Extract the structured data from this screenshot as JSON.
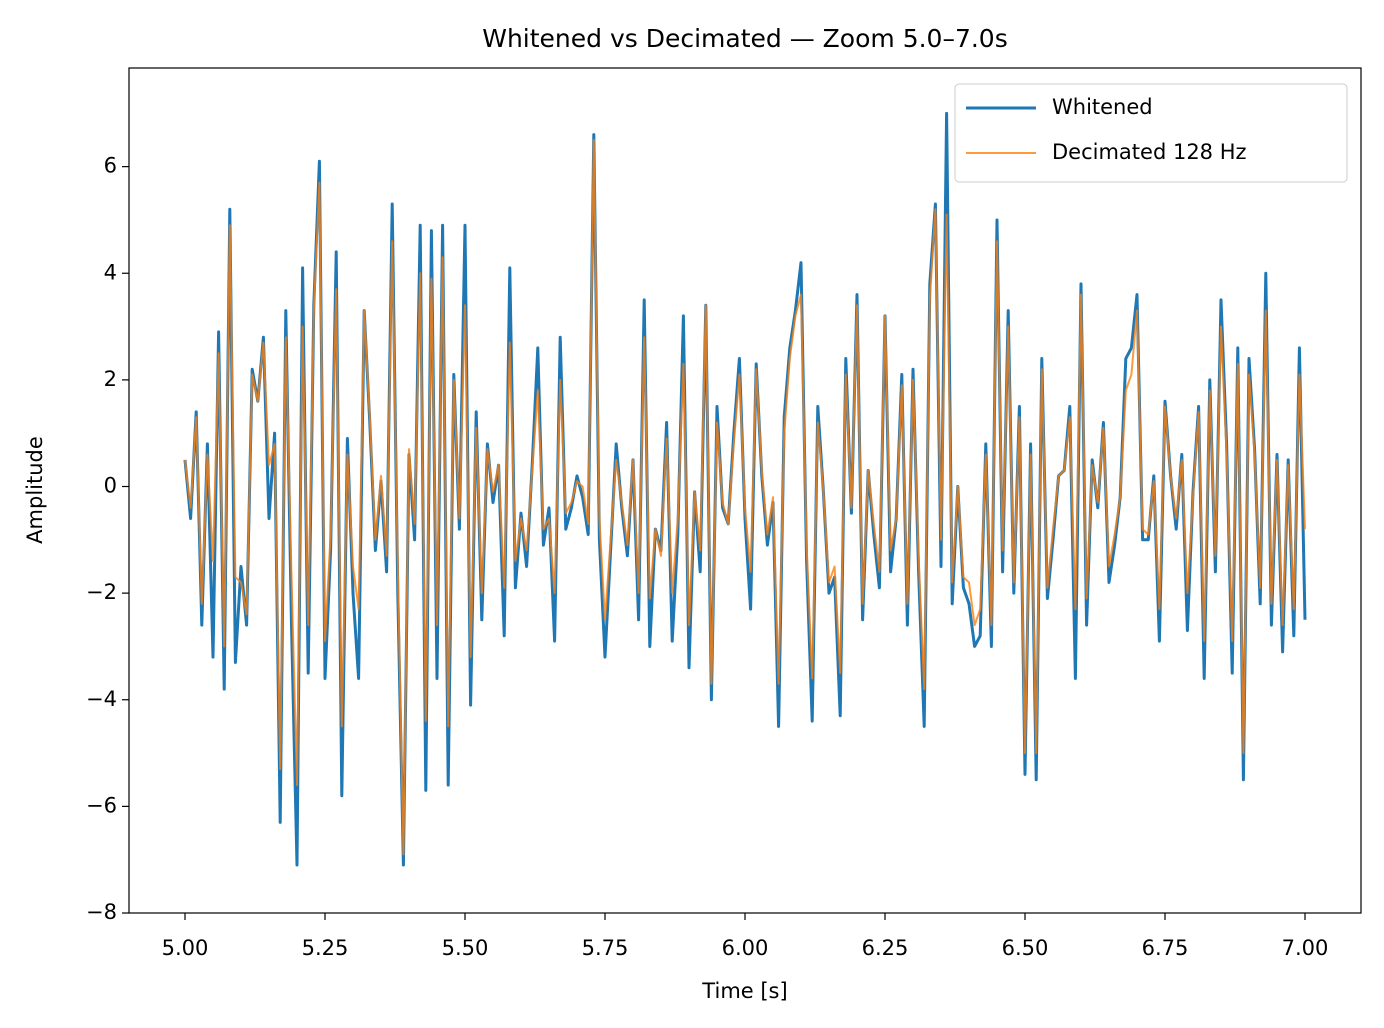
{
  "chart_data": {
    "type": "line",
    "title": "Whitened vs Decimated — Zoom 5.0–7.0s",
    "xlabel": "Time [s]",
    "ylabel": "Amplitude",
    "xlim": [
      4.9,
      7.1
    ],
    "ylim": [
      -8,
      7.85
    ],
    "xticks": [
      {
        "value": 5.0,
        "label": "5.00"
      },
      {
        "value": 5.25,
        "label": "5.25"
      },
      {
        "value": 5.5,
        "label": "5.50"
      },
      {
        "value": 5.75,
        "label": "5.75"
      },
      {
        "value": 6.0,
        "label": "6.00"
      },
      {
        "value": 6.25,
        "label": "6.25"
      },
      {
        "value": 6.5,
        "label": "6.50"
      },
      {
        "value": 6.75,
        "label": "6.75"
      },
      {
        "value": 7.0,
        "label": "7.00"
      }
    ],
    "yticks": [
      {
        "value": -8,
        "label": "−8"
      },
      {
        "value": -6,
        "label": "−6"
      },
      {
        "value": -4,
        "label": "−4"
      },
      {
        "value": -2,
        "label": "−2"
      },
      0,
      2,
      4,
      6
    ],
    "grid": false,
    "legend": "upper right",
    "x": [
      5.0,
      5.01,
      5.02,
      5.03,
      5.04,
      5.05,
      5.06,
      5.07,
      5.08,
      5.09,
      5.1,
      5.11,
      5.12,
      5.13,
      5.14,
      5.15,
      5.16,
      5.17,
      5.18,
      5.19,
      5.2,
      5.21,
      5.22,
      5.23,
      5.24,
      5.25,
      5.26,
      5.27,
      5.28,
      5.29,
      5.3,
      5.31,
      5.32,
      5.33,
      5.34,
      5.35,
      5.36,
      5.37,
      5.38,
      5.39,
      5.4,
      5.41,
      5.42,
      5.43,
      5.44,
      5.45,
      5.46,
      5.47,
      5.48,
      5.49,
      5.5,
      5.51,
      5.52,
      5.53,
      5.54,
      5.55,
      5.56,
      5.57,
      5.58,
      5.59,
      5.6,
      5.61,
      5.62,
      5.63,
      5.64,
      5.65,
      5.66,
      5.67,
      5.68,
      5.69,
      5.7,
      5.71,
      5.72,
      5.73,
      5.74,
      5.75,
      5.76,
      5.77,
      5.78,
      5.79,
      5.8,
      5.81,
      5.82,
      5.83,
      5.84,
      5.85,
      5.86,
      5.87,
      5.88,
      5.89,
      5.9,
      5.91,
      5.92,
      5.93,
      5.94,
      5.95,
      5.96,
      5.97,
      5.98,
      5.99,
      6.0,
      6.01,
      6.02,
      6.03,
      6.04,
      6.05,
      6.06,
      6.07,
      6.08,
      6.09,
      6.1,
      6.11,
      6.12,
      6.13,
      6.14,
      6.15,
      6.16,
      6.17,
      6.18,
      6.19,
      6.2,
      6.21,
      6.22,
      6.23,
      6.24,
      6.25,
      6.26,
      6.27,
      6.28,
      6.29,
      6.3,
      6.31,
      6.32,
      6.33,
      6.34,
      6.35,
      6.36,
      6.37,
      6.38,
      6.39,
      6.4,
      6.41,
      6.42,
      6.43,
      6.44,
      6.45,
      6.46,
      6.47,
      6.48,
      6.49,
      6.5,
      6.51,
      6.52,
      6.53,
      6.54,
      6.55,
      6.56,
      6.57,
      6.58,
      6.59,
      6.6,
      6.61,
      6.62,
      6.63,
      6.64,
      6.65,
      6.66,
      6.67,
      6.68,
      6.69,
      6.7,
      6.71,
      6.72,
      6.73,
      6.74,
      6.75,
      6.76,
      6.77,
      6.78,
      6.79,
      6.8,
      6.81,
      6.82,
      6.83,
      6.84,
      6.85,
      6.86,
      6.87,
      6.88,
      6.89,
      6.9,
      6.91,
      6.92,
      6.93,
      6.94,
      6.95,
      6.96,
      6.97,
      6.98,
      6.99,
      7.0
    ],
    "series": [
      {
        "name": "Whitened",
        "color": "#1f77b4",
        "values": [
          0.5,
          -0.6,
          1.4,
          -2.6,
          0.8,
          -3.2,
          2.9,
          -3.8,
          5.2,
          -3.3,
          -1.5,
          -2.6,
          2.2,
          1.6,
          2.8,
          -0.6,
          1.0,
          -6.3,
          3.3,
          -2.5,
          -7.1,
          4.1,
          -3.5,
          3.4,
          6.1,
          -3.6,
          -1.2,
          4.4,
          -5.8,
          0.9,
          -2.0,
          -3.6,
          3.3,
          1.2,
          -1.2,
          0.1,
          -1.6,
          5.3,
          -2.0,
          -7.1,
          0.6,
          -1.0,
          4.9,
          -5.7,
          4.8,
          -3.6,
          4.9,
          -5.6,
          2.1,
          -0.8,
          4.9,
          -4.1,
          1.4,
          -2.5,
          0.8,
          -0.3,
          0.4,
          -2.8,
          4.1,
          -1.9,
          -0.5,
          -1.5,
          0.4,
          2.6,
          -1.1,
          -0.4,
          -2.9,
          2.8,
          -0.8,
          -0.4,
          0.2,
          -0.2,
          -0.9,
          6.6,
          -1.0,
          -3.2,
          -1.2,
          0.8,
          -0.4,
          -1.3,
          0.5,
          -2.5,
          3.5,
          -3.0,
          -0.8,
          -1.2,
          1.2,
          -2.9,
          -0.9,
          3.2,
          -3.4,
          -0.1,
          -1.6,
          3.4,
          -4.0,
          1.5,
          -0.4,
          -0.7,
          1.0,
          2.4,
          -0.6,
          -2.3,
          2.3,
          0.2,
          -1.1,
          -0.3,
          -4.5,
          1.3,
          2.6,
          3.3,
          4.2,
          -1.4,
          -4.4,
          1.5,
          -0.1,
          -2.0,
          -1.7,
          -4.3,
          2.4,
          -0.5,
          3.6,
          -2.5,
          0.3,
          -0.9,
          -1.9,
          3.2,
          -1.6,
          -0.6,
          2.1,
          -2.6,
          2.2,
          -1.6,
          -4.5,
          3.8,
          5.3,
          -1.5,
          7.0,
          -2.2,
          0.0,
          -1.9,
          -2.2,
          -3.0,
          -2.8,
          0.8,
          -3.0,
          5.0,
          -1.6,
          3.3,
          -2.0,
          1.5,
          -5.4,
          0.8,
          -5.5,
          2.4,
          -2.1,
          -1.0,
          0.2,
          0.3,
          1.5,
          -3.6,
          3.8,
          -2.6,
          0.5,
          -0.4,
          1.2,
          -1.8,
          -1.1,
          -0.2,
          2.4,
          2.6,
          3.6,
          -1.0,
          -1.0,
          0.2,
          -2.9,
          1.6,
          0.2,
          -0.8,
          0.6,
          -2.7,
          -0.1,
          1.5,
          -3.6,
          2.0,
          -1.6,
          3.5,
          0.8,
          -3.5,
          2.6,
          -5.5,
          2.4,
          0.7,
          -2.2,
          4.0,
          -2.6,
          0.6,
          -3.1,
          0.5,
          -2.8,
          2.6,
          -2.5
        ]
      },
      {
        "name": "Decimated 128 Hz",
        "color": "#ff7f0e",
        "values": [
          0.5,
          -0.4,
          1.3,
          -2.2,
          0.6,
          -1.4,
          2.5,
          -3.0,
          4.9,
          -1.7,
          -1.8,
          -2.4,
          2.1,
          1.6,
          2.7,
          0.4,
          0.8,
          -5.3,
          2.8,
          -1.6,
          -5.6,
          3.0,
          -2.6,
          3.3,
          5.7,
          -2.9,
          -0.9,
          3.7,
          -4.5,
          0.6,
          -1.5,
          -2.3,
          3.3,
          1.3,
          -1.0,
          0.2,
          -1.3,
          4.6,
          -1.5,
          -6.9,
          0.7,
          -0.7,
          4.0,
          -4.4,
          3.9,
          -2.6,
          4.3,
          -4.5,
          2.0,
          -0.6,
          3.4,
          -3.2,
          1.1,
          -2.0,
          0.7,
          -0.1,
          0.4,
          -1.9,
          2.7,
          -1.4,
          -0.6,
          -1.2,
          0.3,
          1.8,
          -0.8,
          -0.6,
          -2.0,
          2.0,
          -0.5,
          -0.3,
          0.1,
          0.0,
          -0.7,
          6.5,
          -0.6,
          -2.5,
          -1.0,
          0.5,
          -0.3,
          -1.1,
          0.5,
          -2.0,
          2.8,
          -2.1,
          -0.8,
          -1.3,
          0.9,
          -2.0,
          -0.6,
          2.3,
          -2.6,
          -0.1,
          -1.2,
          3.4,
          -3.7,
          1.2,
          -0.3,
          -0.7,
          0.8,
          2.1,
          -0.4,
          -1.6,
          2.2,
          0.3,
          -0.9,
          -0.2,
          -3.7,
          1.0,
          2.4,
          3.2,
          3.6,
          -1.1,
          -3.6,
          1.2,
          -0.1,
          -1.8,
          -1.5,
          -3.5,
          2.1,
          -0.4,
          3.4,
          -2.2,
          0.3,
          -0.7,
          -1.6,
          3.2,
          -1.2,
          -0.6,
          1.9,
          -2.2,
          2.0,
          -1.3,
          -3.8,
          3.5,
          5.2,
          -1.0,
          5.1,
          -1.8,
          0.0,
          -1.7,
          -1.8,
          -2.6,
          -2.3,
          0.6,
          -2.6,
          4.6,
          -1.2,
          3.0,
          -1.8,
          1.3,
          -5.0,
          0.6,
          -5.0,
          2.2,
          -1.9,
          -0.8,
          0.2,
          0.3,
          1.3,
          -2.3,
          3.6,
          -2.1,
          0.4,
          -0.3,
          1.1,
          -1.5,
          -0.9,
          -0.2,
          1.8,
          2.1,
          3.3,
          -0.8,
          -0.9,
          0.1,
          -2.3,
          1.5,
          0.2,
          -0.6,
          0.5,
          -2.0,
          -0.2,
          1.4,
          -2.9,
          1.8,
          -1.3,
          3.0,
          0.6,
          -2.9,
          2.3,
          -5.0,
          2.1,
          0.6,
          -1.9,
          3.3,
          -2.2,
          0.5,
          -2.6,
          0.4,
          -2.3,
          2.1,
          -0.8
        ]
      }
    ]
  }
}
